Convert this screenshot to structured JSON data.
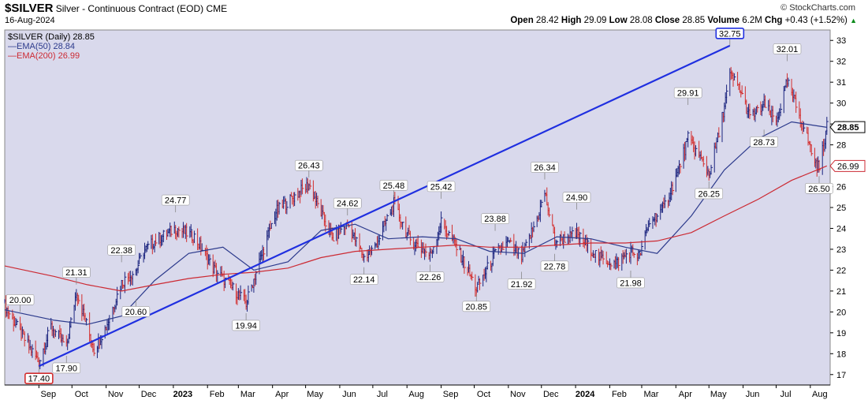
{
  "header": {
    "symbol": "$SILVER",
    "description": "Silver - Continuous Contract (EOD)",
    "exchange": "CME",
    "date": "16-Aug-2024",
    "brand": "© StockCharts.com",
    "open_label": "Open",
    "open": "28.42",
    "high_label": "High",
    "high": "29.09",
    "low_label": "Low",
    "low": "28.08",
    "close_label": "Close",
    "close": "28.85",
    "volume_label": "Volume",
    "volume": "6.2M",
    "chg_label": "Chg",
    "chg": "+0.43 (+1.52%)"
  },
  "legend": {
    "price": "$SILVER (Daily) 28.85",
    "ema50": "EMA(50) 28.84",
    "ema200": "EMA(200) 26.99"
  },
  "colors": {
    "background": "#d9d9ec",
    "up": "#1a237e",
    "down": "#d32f2f",
    "ema50": "#2c3a8c",
    "ema200": "#cc2a33",
    "trendline": "#1f2fe0"
  },
  "chart_data": {
    "type": "line",
    "ylim": [
      16.5,
      33.5
    ],
    "yticks": [
      17,
      18,
      19,
      20,
      21,
      22,
      23,
      24,
      25,
      26,
      27,
      28,
      29,
      30,
      31,
      32,
      33
    ],
    "x_axis": {
      "labels": [
        "Sep",
        "Oct",
        "Nov",
        "Dec",
        "2023",
        "Feb",
        "Mar",
        "Apr",
        "May",
        "Jun",
        "Jul",
        "Aug",
        "Sep",
        "Oct",
        "Nov",
        "Dec",
        "2024",
        "Feb",
        "Mar",
        "Apr",
        "May",
        "Jun",
        "Jul",
        "Aug"
      ],
      "bold": [
        "2023",
        "2024"
      ]
    },
    "price_series": {
      "name": "$SILVER (Daily)",
      "x": [
        "2022-08-01",
        "2022-08-15",
        "2022-09-01",
        "2022-09-12",
        "2022-09-26",
        "2022-10-05",
        "2022-10-21",
        "2022-11-01",
        "2022-11-15",
        "2022-11-28",
        "2022-12-05",
        "2022-12-15",
        "2023-01-03",
        "2023-01-20",
        "2023-02-06",
        "2023-02-28",
        "2023-03-08",
        "2023-03-20",
        "2023-04-04",
        "2023-04-20",
        "2023-05-04",
        "2023-05-25",
        "2023-06-08",
        "2023-06-23",
        "2023-07-03",
        "2023-07-20",
        "2023-08-03",
        "2023-08-22",
        "2023-09-01",
        "2023-09-14",
        "2023-10-03",
        "2023-10-20",
        "2023-11-01",
        "2023-11-13",
        "2023-11-28",
        "2023-12-04",
        "2023-12-13",
        "2024-01-02",
        "2024-01-22",
        "2024-02-06",
        "2024-02-20",
        "2024-02-28",
        "2024-03-08",
        "2024-03-21",
        "2024-04-02",
        "2024-04-12",
        "2024-04-25",
        "2024-05-01",
        "2024-05-10",
        "2024-05-20",
        "2024-05-28",
        "2024-06-07",
        "2024-06-20",
        "2024-07-01",
        "2024-07-11",
        "2024-07-25",
        "2024-08-05",
        "2024-08-09",
        "2024-08-16"
      ],
      "values": [
        20.3,
        19.0,
        17.6,
        19.3,
        18.3,
        21.0,
        18.2,
        19.3,
        21.4,
        22.0,
        22.9,
        23.4,
        24.0,
        23.6,
        22.1,
        20.9,
        20.4,
        22.4,
        24.8,
        25.5,
        26.1,
        23.5,
        24.2,
        22.6,
        23.1,
        25.2,
        23.5,
        22.7,
        24.3,
        23.2,
        21.1,
        22.8,
        23.3,
        22.6,
        24.6,
        25.7,
        23.4,
        23.7,
        22.6,
        22.3,
        22.9,
        22.7,
        24.3,
        25.0,
        26.6,
        28.3,
        27.2,
        26.6,
        28.5,
        31.3,
        30.8,
        29.3,
        29.9,
        29.1,
        31.0,
        29.0,
        27.2,
        26.9,
        28.85
      ]
    },
    "series": [
      {
        "name": "EMA(50)",
        "x": [
          "2022-08-01",
          "2022-09-15",
          "2022-10-15",
          "2022-11-15",
          "2022-12-15",
          "2023-01-15",
          "2023-02-15",
          "2023-03-15",
          "2023-04-15",
          "2023-05-15",
          "2023-06-15",
          "2023-07-15",
          "2023-08-15",
          "2023-09-15",
          "2023-10-15",
          "2023-11-15",
          "2023-12-15",
          "2024-01-15",
          "2024-02-15",
          "2024-03-15",
          "2024-04-15",
          "2024-05-15",
          "2024-06-15",
          "2024-07-15",
          "2024-08-16"
        ],
        "values": [
          20.1,
          19.6,
          19.4,
          19.8,
          21.5,
          22.8,
          23.1,
          22.0,
          22.4,
          23.9,
          24.2,
          23.5,
          23.6,
          23.5,
          22.9,
          22.8,
          23.6,
          23.5,
          23.1,
          22.8,
          24.6,
          26.8,
          28.3,
          29.1,
          28.84
        ]
      },
      {
        "name": "EMA(200)",
        "x": [
          "2022-08-01",
          "2022-09-15",
          "2022-10-15",
          "2022-11-15",
          "2022-12-15",
          "2023-01-15",
          "2023-02-15",
          "2023-03-15",
          "2023-04-15",
          "2023-05-15",
          "2023-06-15",
          "2023-07-15",
          "2023-08-15",
          "2023-09-15",
          "2023-10-15",
          "2023-11-15",
          "2023-12-15",
          "2024-01-15",
          "2024-02-15",
          "2024-03-15",
          "2024-04-15",
          "2024-05-15",
          "2024-06-15",
          "2024-07-15",
          "2024-08-16"
        ],
        "values": [
          22.2,
          21.7,
          21.3,
          21.0,
          21.3,
          21.6,
          21.8,
          21.9,
          22.1,
          22.6,
          22.9,
          23.0,
          23.1,
          23.2,
          23.1,
          23.1,
          23.2,
          23.3,
          23.3,
          23.4,
          23.8,
          24.6,
          25.4,
          26.3,
          26.99
        ]
      }
    ],
    "trendline": {
      "from": {
        "x": "2022-09-01",
        "y": 17.4
      },
      "to": {
        "x": "2024-05-20",
        "y": 32.75
      }
    },
    "annotations": [
      {
        "text": "20.00",
        "x": "2022-08-15",
        "y": 20.0,
        "pos": "above"
      },
      {
        "text": "17.90",
        "x": "2022-09-26",
        "y": 17.9,
        "pos": "below"
      },
      {
        "text": "21.31",
        "x": "2022-10-05",
        "y": 21.31,
        "pos": "above"
      },
      {
        "text": "22.38",
        "x": "2022-11-15",
        "y": 22.38,
        "pos": "above"
      },
      {
        "text": "20.60",
        "x": "2022-11-28",
        "y": 20.6,
        "pos": "below"
      },
      {
        "text": "24.77",
        "x": "2023-01-03",
        "y": 24.77,
        "pos": "above"
      },
      {
        "text": "19.94",
        "x": "2023-03-08",
        "y": 19.94,
        "pos": "below"
      },
      {
        "text": "26.43",
        "x": "2023-05-04",
        "y": 26.43,
        "pos": "above"
      },
      {
        "text": "24.62",
        "x": "2023-06-08",
        "y": 24.62,
        "pos": "above"
      },
      {
        "text": "22.14",
        "x": "2023-06-23",
        "y": 22.14,
        "pos": "below"
      },
      {
        "text": "25.48",
        "x": "2023-07-20",
        "y": 25.48,
        "pos": "above"
      },
      {
        "text": "22.26",
        "x": "2023-08-22",
        "y": 22.26,
        "pos": "below"
      },
      {
        "text": "25.42",
        "x": "2023-09-01",
        "y": 25.42,
        "pos": "above"
      },
      {
        "text": "20.85",
        "x": "2023-10-03",
        "y": 20.85,
        "pos": "below"
      },
      {
        "text": "23.88",
        "x": "2023-10-20",
        "y": 23.88,
        "pos": "above"
      },
      {
        "text": "21.92",
        "x": "2023-11-13",
        "y": 21.92,
        "pos": "below"
      },
      {
        "text": "26.34",
        "x": "2023-12-04",
        "y": 26.34,
        "pos": "above"
      },
      {
        "text": "22.78",
        "x": "2023-12-13",
        "y": 22.78,
        "pos": "below"
      },
      {
        "text": "24.90",
        "x": "2024-01-02",
        "y": 24.9,
        "pos": "above"
      },
      {
        "text": "21.98",
        "x": "2024-02-20",
        "y": 21.98,
        "pos": "below"
      },
      {
        "text": "29.91",
        "x": "2024-04-12",
        "y": 29.91,
        "pos": "above"
      },
      {
        "text": "26.25",
        "x": "2024-05-01",
        "y": 26.25,
        "pos": "below"
      },
      {
        "text": "32.75",
        "x": "2024-05-20",
        "y": 32.75,
        "pos": "above",
        "boxed": "#1f2fe0"
      },
      {
        "text": "28.73",
        "x": "2024-06-20",
        "y": 28.73,
        "pos": "below"
      },
      {
        "text": "32.01",
        "x": "2024-07-11",
        "y": 32.01,
        "pos": "above"
      },
      {
        "text": "26.50",
        "x": "2024-08-09",
        "y": 26.5,
        "pos": "below"
      },
      {
        "text": "17.40",
        "x": "2022-09-01",
        "y": 17.4,
        "pos": "below",
        "boxed": "#d32f2f"
      }
    ],
    "last_value_tags": [
      {
        "text": "28.85",
        "y": 28.85,
        "color": "#000000",
        "bold": true
      },
      {
        "text": "26.99",
        "y": 26.99,
        "color": "#cc2a33",
        "bold": false
      }
    ],
    "grid": false,
    "legend_position": "top-left"
  }
}
